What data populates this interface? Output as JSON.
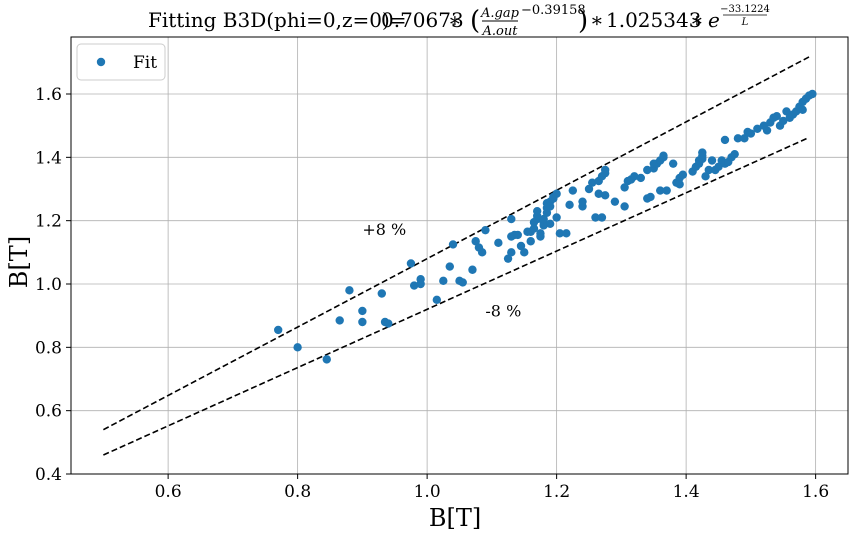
{
  "chart_data": {
    "type": "scatter",
    "title": "Fitting B3D(phi=0,z=0)= 0.70673 * (A.gap/A.out)^-0.39158 * 1.025343 * e^(-33.1224/L)",
    "title_parts": {
      "prefix": "Fitting B3D(phi=0,z=0)=",
      "coef": "0.70673",
      "times1": "∗",
      "frac_num": "A.gap",
      "frac_den": "A.out",
      "exponent": "−0.39158",
      "times2": "∗",
      "factor": "1.025343",
      "times3": "∗",
      "e": "e",
      "exp_num": "−33.1224",
      "exp_den": "L"
    },
    "xlabel": "B[T]",
    "ylabel": "B[T]",
    "xlim": [
      0.45,
      1.65
    ],
    "ylim": [
      0.4,
      1.78
    ],
    "xticks": [
      {
        "v": 0.6,
        "label": "0.6"
      },
      {
        "v": 0.8,
        "label": "0.8"
      },
      {
        "v": 1.0,
        "label": "1.0"
      },
      {
        "v": 1.2,
        "label": "1.2"
      },
      {
        "v": 1.4,
        "label": "1.4"
      },
      {
        "v": 1.6,
        "label": "1.6"
      }
    ],
    "yticks": [
      {
        "v": 0.4,
        "label": "0.4"
      },
      {
        "v": 0.6,
        "label": "0.6"
      },
      {
        "v": 0.8,
        "label": "0.8"
      },
      {
        "v": 1.0,
        "label": "1.0"
      },
      {
        "v": 1.2,
        "label": "1.2"
      },
      {
        "v": 1.4,
        "label": "1.4"
      },
      {
        "v": 1.6,
        "label": "1.6"
      }
    ],
    "grid": true,
    "legend": {
      "position": "top-left",
      "entries": [
        {
          "label": "Fit",
          "color": "#1f77b4",
          "marker": "circle"
        }
      ]
    },
    "series": [
      {
        "name": "Fit",
        "color": "#1f77b4",
        "points": [
          [
            0.77,
            0.855
          ],
          [
            0.8,
            0.8
          ],
          [
            0.845,
            0.762
          ],
          [
            0.865,
            0.885
          ],
          [
            0.88,
            0.98
          ],
          [
            0.9,
            0.88
          ],
          [
            0.9,
            0.915
          ],
          [
            0.93,
            0.97
          ],
          [
            0.935,
            0.88
          ],
          [
            0.94,
            0.875
          ],
          [
            0.975,
            1.065
          ],
          [
            0.98,
            0.995
          ],
          [
            0.99,
            1.015
          ],
          [
            0.99,
            1.0
          ],
          [
            1.015,
            0.95
          ],
          [
            1.025,
            1.01
          ],
          [
            1.035,
            1.055
          ],
          [
            1.04,
            1.125
          ],
          [
            1.05,
            1.01
          ],
          [
            1.055,
            1.005
          ],
          [
            1.07,
            1.045
          ],
          [
            1.075,
            1.135
          ],
          [
            1.08,
            1.115
          ],
          [
            1.085,
            1.1
          ],
          [
            1.09,
            1.17
          ],
          [
            1.11,
            1.13
          ],
          [
            1.125,
            1.08
          ],
          [
            1.13,
            1.1
          ],
          [
            1.13,
            1.15
          ],
          [
            1.13,
            1.205
          ],
          [
            1.135,
            1.155
          ],
          [
            1.14,
            1.155
          ],
          [
            1.145,
            1.12
          ],
          [
            1.15,
            1.1
          ],
          [
            1.155,
            1.165
          ],
          [
            1.16,
            1.165
          ],
          [
            1.16,
            1.135
          ],
          [
            1.165,
            1.175
          ],
          [
            1.165,
            1.195
          ],
          [
            1.17,
            1.205
          ],
          [
            1.17,
            1.215
          ],
          [
            1.17,
            1.23
          ],
          [
            1.175,
            1.15
          ],
          [
            1.175,
            1.16
          ],
          [
            1.18,
            1.185
          ],
          [
            1.18,
            1.195
          ],
          [
            1.18,
            1.205
          ],
          [
            1.185,
            1.225
          ],
          [
            1.185,
            1.24
          ],
          [
            1.185,
            1.255
          ],
          [
            1.19,
            1.26
          ],
          [
            1.19,
            1.245
          ],
          [
            1.19,
            1.19
          ],
          [
            1.195,
            1.275
          ],
          [
            1.195,
            1.27
          ],
          [
            1.2,
            1.21
          ],
          [
            1.2,
            1.285
          ],
          [
            1.205,
            1.16
          ],
          [
            1.215,
            1.16
          ],
          [
            1.22,
            1.25
          ],
          [
            1.225,
            1.295
          ],
          [
            1.24,
            1.245
          ],
          [
            1.24,
            1.26
          ],
          [
            1.25,
            1.3
          ],
          [
            1.255,
            1.32
          ],
          [
            1.26,
            1.21
          ],
          [
            1.265,
            1.285
          ],
          [
            1.265,
            1.325
          ],
          [
            1.27,
            1.21
          ],
          [
            1.27,
            1.34
          ],
          [
            1.275,
            1.35
          ],
          [
            1.275,
            1.36
          ],
          [
            1.275,
            1.28
          ],
          [
            1.29,
            1.26
          ],
          [
            1.305,
            1.305
          ],
          [
            1.305,
            1.245
          ],
          [
            1.31,
            1.325
          ],
          [
            1.315,
            1.33
          ],
          [
            1.32,
            1.34
          ],
          [
            1.33,
            1.335
          ],
          [
            1.34,
            1.27
          ],
          [
            1.34,
            1.36
          ],
          [
            1.345,
            1.275
          ],
          [
            1.35,
            1.365
          ],
          [
            1.35,
            1.38
          ],
          [
            1.355,
            1.38
          ],
          [
            1.36,
            1.39
          ],
          [
            1.36,
            1.295
          ],
          [
            1.365,
            1.4
          ],
          [
            1.365,
            1.405
          ],
          [
            1.37,
            1.295
          ],
          [
            1.38,
            1.38
          ],
          [
            1.385,
            1.32
          ],
          [
            1.39,
            1.335
          ],
          [
            1.39,
            1.315
          ],
          [
            1.395,
            1.345
          ],
          [
            1.41,
            1.355
          ],
          [
            1.415,
            1.37
          ],
          [
            1.42,
            1.38
          ],
          [
            1.42,
            1.39
          ],
          [
            1.425,
            1.395
          ],
          [
            1.425,
            1.415
          ],
          [
            1.425,
            1.405
          ],
          [
            1.43,
            1.34
          ],
          [
            1.435,
            1.36
          ],
          [
            1.44,
            1.39
          ],
          [
            1.445,
            1.36
          ],
          [
            1.45,
            1.37
          ],
          [
            1.455,
            1.39
          ],
          [
            1.46,
            1.455
          ],
          [
            1.46,
            1.38
          ],
          [
            1.465,
            1.385
          ],
          [
            1.47,
            1.4
          ],
          [
            1.475,
            1.41
          ],
          [
            1.48,
            1.46
          ],
          [
            1.49,
            1.46
          ],
          [
            1.495,
            1.48
          ],
          [
            1.5,
            1.475
          ],
          [
            1.51,
            1.49
          ],
          [
            1.52,
            1.5
          ],
          [
            1.525,
            1.485
          ],
          [
            1.53,
            1.51
          ],
          [
            1.535,
            1.525
          ],
          [
            1.54,
            1.53
          ],
          [
            1.545,
            1.5
          ],
          [
            1.55,
            1.515
          ],
          [
            1.555,
            1.545
          ],
          [
            1.56,
            1.525
          ],
          [
            1.565,
            1.535
          ],
          [
            1.57,
            1.545
          ],
          [
            1.575,
            1.56
          ],
          [
            1.58,
            1.55
          ],
          [
            1.58,
            1.575
          ],
          [
            1.585,
            1.585
          ],
          [
            1.59,
            1.595
          ],
          [
            1.595,
            1.6
          ]
        ]
      }
    ],
    "bands": [
      {
        "name": "upper",
        "label": "+8 %",
        "x": [
          0.5,
          1.59
        ],
        "y": [
          0.54,
          1.7172
        ],
        "style": "dashed",
        "color": "#000000",
        "label_at": [
          0.9,
          1.155
        ]
      },
      {
        "name": "lower",
        "label": "-8 %",
        "x": [
          0.5,
          1.59
        ],
        "y": [
          0.46,
          1.4628
        ],
        "style": "dashed",
        "color": "#000000",
        "label_at": [
          1.09,
          0.898
        ]
      }
    ]
  }
}
